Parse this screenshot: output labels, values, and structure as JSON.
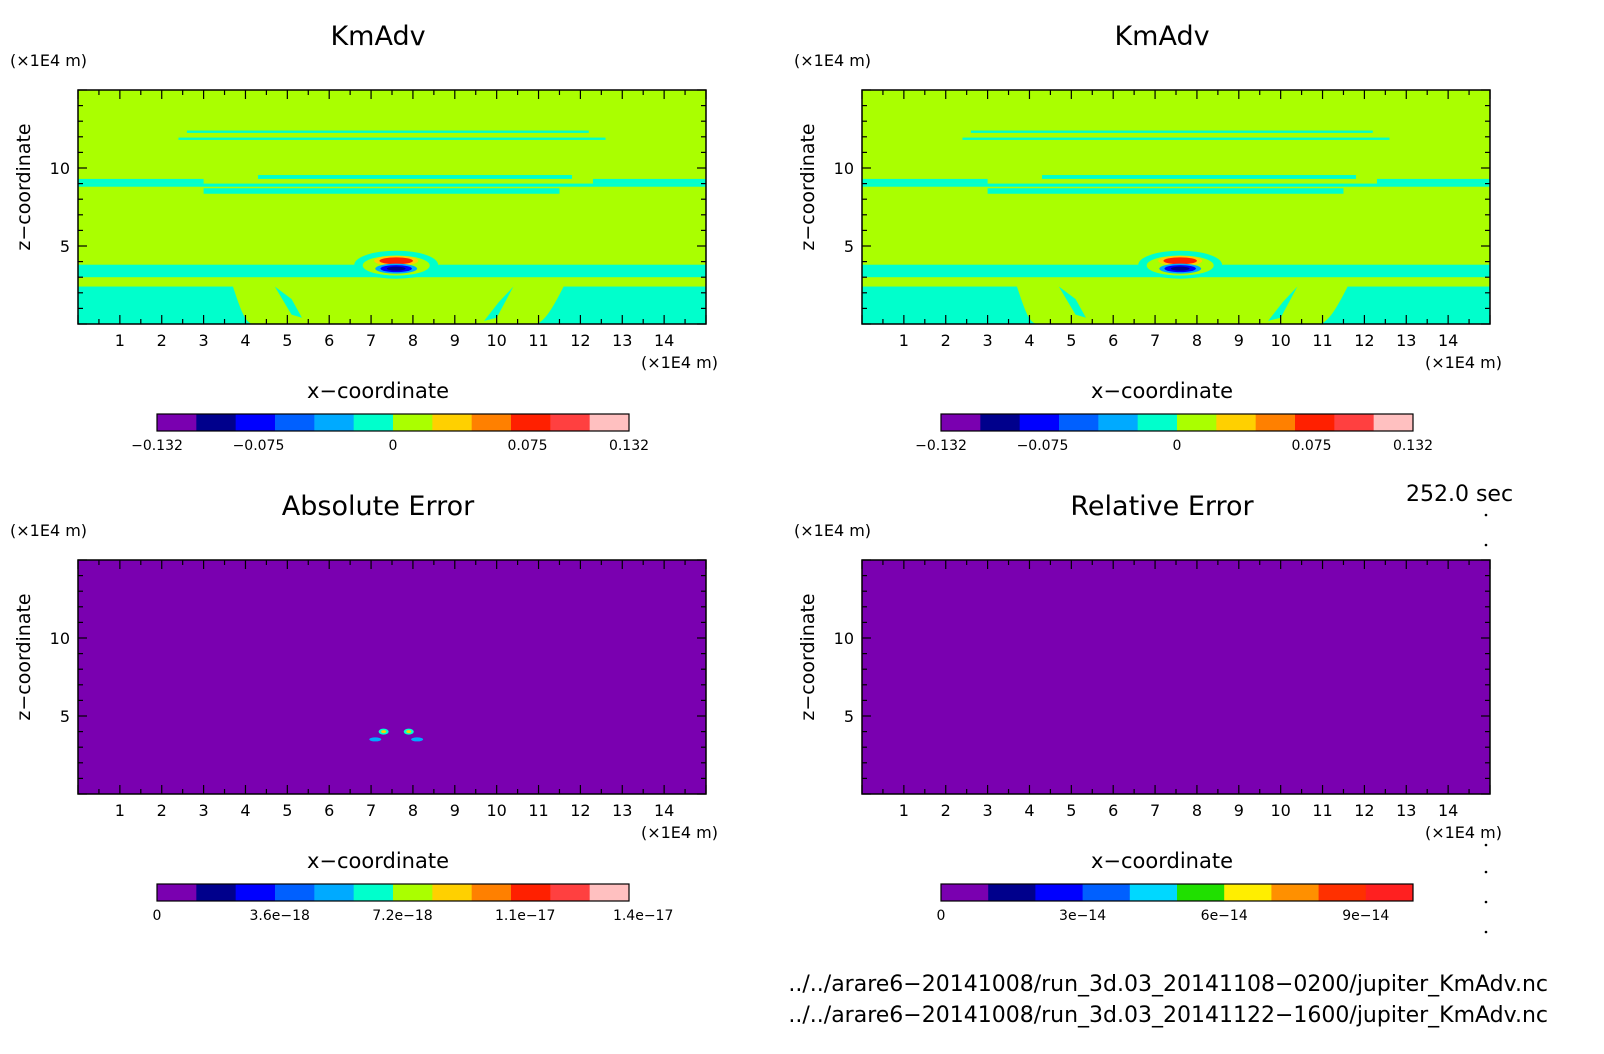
{
  "chart_data": [
    {
      "type": "heatmap",
      "id": "p1",
      "title": "KmAdv",
      "xlabel": "x−coordinate",
      "ylabel": "z−coordinate",
      "x_unit": "(×1E4 m)",
      "y_unit": "(×1E4 m)",
      "xlim": [
        0,
        15
      ],
      "ylim": [
        0,
        15
      ],
      "x_ticks": [
        "1",
        "2",
        "3",
        "4",
        "5",
        "6",
        "7",
        "8",
        "9",
        "10",
        "11",
        "12",
        "13",
        "14"
      ],
      "y_ticks": [
        "5",
        "10"
      ],
      "field": "kmadv",
      "colorbar": {
        "colors": [
          "#7a00b0",
          "#00008c",
          "#0000ff",
          "#0060ff",
          "#00aaff",
          "#00ffcc",
          "#aaff00",
          "#ffd000",
          "#ff8000",
          "#ff2000",
          "#ff4040",
          "#ffc0c0"
        ],
        "labels": [
          "−0.132",
          "−0.075",
          "0",
          "0.075",
          "0.132"
        ],
        "label_positions": [
          0,
          0.215,
          0.5,
          0.785,
          1
        ]
      }
    },
    {
      "type": "heatmap",
      "id": "p2",
      "title": "KmAdv",
      "xlabel": "x−coordinate",
      "ylabel": "z−coordinate",
      "x_unit": "(×1E4 m)",
      "y_unit": "(×1E4 m)",
      "xlim": [
        0,
        15
      ],
      "ylim": [
        0,
        15
      ],
      "x_ticks": [
        "1",
        "2",
        "3",
        "4",
        "5",
        "6",
        "7",
        "8",
        "9",
        "10",
        "11",
        "12",
        "13",
        "14"
      ],
      "y_ticks": [
        "5",
        "10"
      ],
      "field": "kmadv",
      "colorbar": {
        "colors": [
          "#7a00b0",
          "#00008c",
          "#0000ff",
          "#0060ff",
          "#00aaff",
          "#00ffcc",
          "#aaff00",
          "#ffd000",
          "#ff8000",
          "#ff2000",
          "#ff4040",
          "#ffc0c0"
        ],
        "labels": [
          "−0.132",
          "−0.075",
          "0",
          "0.075",
          "0.132"
        ],
        "label_positions": [
          0,
          0.215,
          0.5,
          0.785,
          1
        ]
      }
    },
    {
      "type": "heatmap",
      "id": "p3",
      "title": "Absolute Error",
      "xlabel": "x−coordinate",
      "ylabel": "z−coordinate",
      "x_unit": "(×1E4 m)",
      "y_unit": "(×1E4 m)",
      "xlim": [
        0,
        15
      ],
      "ylim": [
        0,
        15
      ],
      "x_ticks": [
        "1",
        "2",
        "3",
        "4",
        "5",
        "6",
        "7",
        "8",
        "9",
        "10",
        "11",
        "12",
        "13",
        "14"
      ],
      "y_ticks": [
        "5",
        "10"
      ],
      "field": "abs_error",
      "colorbar": {
        "colors": [
          "#7a00b0",
          "#00008c",
          "#0000ff",
          "#0060ff",
          "#00aaff",
          "#00ffcc",
          "#aaff00",
          "#ffd000",
          "#ff8000",
          "#ff2000",
          "#ff4040",
          "#ffc0c0"
        ],
        "labels": [
          "0",
          "3.6e−18",
          "7.2e−18",
          "1.1e−17",
          "1.4e−17"
        ],
        "label_positions": [
          0,
          0.26,
          0.52,
          0.78,
          1.03
        ]
      }
    },
    {
      "type": "heatmap",
      "id": "p4",
      "title": "Relative Error",
      "xlabel": "x−coordinate",
      "ylabel": "z−coordinate",
      "x_unit": "(×1E4 m)",
      "y_unit": "(×1E4 m)",
      "xlim": [
        0,
        15
      ],
      "ylim": [
        0,
        15
      ],
      "x_ticks": [
        "1",
        "2",
        "3",
        "4",
        "5",
        "6",
        "7",
        "8",
        "9",
        "10",
        "11",
        "12",
        "13",
        "14"
      ],
      "y_ticks": [
        "5",
        "10"
      ],
      "field": "rel_error",
      "colorbar": {
        "colors": [
          "#7a00b0",
          "#00008c",
          "#0000ff",
          "#0060ff",
          "#00d8ff",
          "#20e000",
          "#ffee00",
          "#ff9000",
          "#ff3000",
          "#ff2020"
        ],
        "labels": [
          "0",
          "3e−14",
          "6e−14",
          "9e−14"
        ],
        "label_positions": [
          0,
          0.3,
          0.6,
          0.9
        ]
      }
    }
  ],
  "time_label": "252.0 sec",
  "file_paths": [
    "../../arare6−20141008/run_3d.03_20141108−0200/jupiter_KmAdv.nc",
    "../../arare6−20141008/run_3d.03_20141122−1600/jupiter_KmAdv.nc"
  ]
}
